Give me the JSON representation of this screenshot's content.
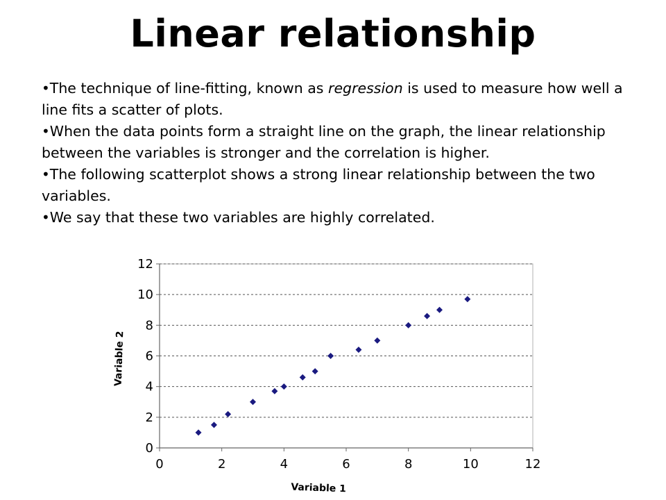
{
  "slide": {
    "title": "Linear relationship",
    "bullets": [
      {
        "pre": "The technique of line-fitting, known as ",
        "em": "regression",
        "post": " is used to measure how well a line fits a scatter of plots."
      },
      {
        "pre": "When the data points form a straight line on the graph, the linear relationship between the variables is stronger and the correlation is higher.",
        "em": "",
        "post": ""
      },
      {
        "pre": "The following scatterplot shows a strong linear relationship between the two variables.",
        "em": "",
        "post": ""
      },
      {
        "pre": "We say that these two variables are highly correlated.",
        "em": "",
        "post": ""
      }
    ],
    "bullet_glyph": "•"
  },
  "chart_data": {
    "type": "scatter",
    "xlabel": "Variable 1",
    "ylabel": "Variable 2",
    "xlim": [
      0,
      12
    ],
    "ylim": [
      0,
      12
    ],
    "xticks": [
      0,
      2,
      4,
      6,
      8,
      10,
      12
    ],
    "yticks": [
      0,
      2,
      4,
      6,
      8,
      10,
      12
    ],
    "grid": "horizontal-dashed",
    "legend": "none",
    "marker": "diamond",
    "marker_color": "#1a1a80",
    "series": [
      {
        "x": [
          1.25,
          1.75,
          2.2,
          3.0,
          3.7,
          4.0,
          4.6,
          5.0,
          5.5,
          6.4,
          7.0,
          8.0,
          8.6,
          9.0,
          9.9
        ],
        "y": [
          1.0,
          1.5,
          2.2,
          3.0,
          3.7,
          4.0,
          4.6,
          5.0,
          6.0,
          6.4,
          7.0,
          8.0,
          8.6,
          9.0,
          9.7
        ]
      }
    ]
  }
}
